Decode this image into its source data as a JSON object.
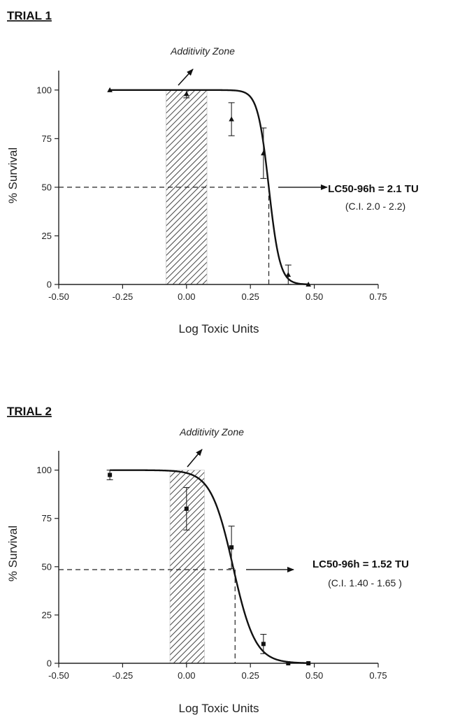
{
  "chart_data": [
    {
      "type": "scatter",
      "title": "TRIAL 1",
      "xlabel": "Log Toxic Units",
      "ylabel": "% Survival",
      "xlim": [
        -0.5,
        0.75
      ],
      "ylim": [
        0,
        110
      ],
      "xticks": [
        "-0.50",
        "-0.25",
        "0.00",
        "0.25",
        "0.50",
        "0.75"
      ],
      "yticks": [
        "0",
        "25",
        "50",
        "75",
        "100"
      ],
      "grid": false,
      "marker": "triangle",
      "points": [
        {
          "x": -0.3,
          "y": 100,
          "err": 0
        },
        {
          "x": 0.0,
          "y": 98,
          "err": 2
        },
        {
          "x": 0.176,
          "y": 85,
          "err": 8.5
        },
        {
          "x": 0.301,
          "y": 67.5,
          "err": 13
        },
        {
          "x": 0.398,
          "y": 5,
          "err": 5
        },
        {
          "x": 0.477,
          "y": 0,
          "err": 0
        }
      ],
      "fit_curve": {
        "top": 100,
        "bottom": 0,
        "log_lc50": 0.322,
        "hill": 20
      },
      "additivity_zone": {
        "x_range": [
          -0.08,
          0.08
        ],
        "label": "Additivity Zone"
      },
      "lc50": {
        "y": 50,
        "x": 0.322,
        "label": "LC50-96h = 2.1 TU",
        "ci_label": "(C.I. 2.0 - 2.2)"
      }
    },
    {
      "type": "scatter",
      "title": "TRIAL 2",
      "xlabel": "Log Toxic Units",
      "ylabel": "% Survival",
      "xlim": [
        -0.5,
        0.75
      ],
      "ylim": [
        0,
        110
      ],
      "xticks": [
        "-0.50",
        "-0.25",
        "0.00",
        "0.25",
        "0.50",
        "0.75"
      ],
      "yticks": [
        "0",
        "25",
        "50",
        "75",
        "100"
      ],
      "grid": false,
      "marker": "square",
      "points": [
        {
          "x": -0.3,
          "y": 97.5,
          "err": 2.5
        },
        {
          "x": 0.0,
          "y": 80,
          "err": 11
        },
        {
          "x": 0.176,
          "y": 60,
          "err": 11
        },
        {
          "x": 0.301,
          "y": 10,
          "err": 5
        },
        {
          "x": 0.398,
          "y": 0,
          "err": 0
        },
        {
          "x": 0.477,
          "y": 0,
          "err": 0
        }
      ],
      "fit_curve": {
        "top": 100,
        "bottom": 0,
        "log_lc50": 0.182,
        "hill": 10
      },
      "additivity_zone": {
        "x_range": [
          -0.065,
          0.07
        ],
        "label": "Additivity Zone"
      },
      "lc50": {
        "y": 48.5,
        "x": 0.19,
        "label": "LC50-96h = 1.52  TU",
        "ci_label": "(C.I. 1.40 - 1.65 )"
      }
    }
  ]
}
